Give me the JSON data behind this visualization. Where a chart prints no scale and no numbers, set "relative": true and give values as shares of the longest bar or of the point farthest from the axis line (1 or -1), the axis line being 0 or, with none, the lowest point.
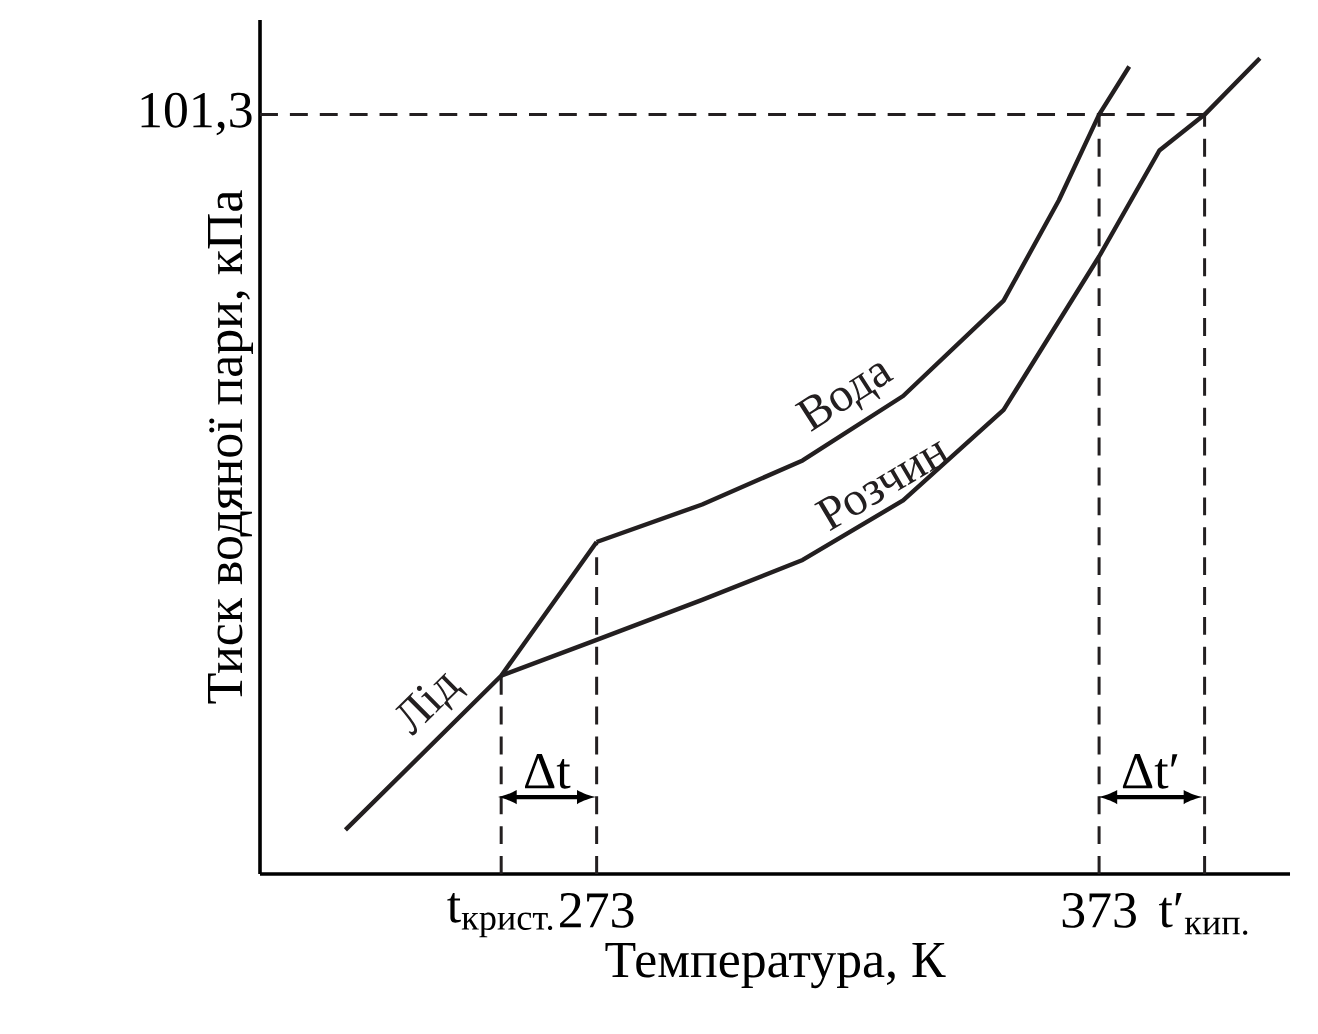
{
  "chart_data": {
    "type": "line",
    "relative": true,
    "xlabel": "Температура, К",
    "ylabel": "Тиск водяної пари, кПа",
    "xlim": [
      206,
      411
    ],
    "xticks": [
      {
        "value": 254,
        "label": "t$_{крист.}$"
      },
      273,
      373,
      {
        "value": 394,
        "label": "t′$_{кип.}$"
      }
    ],
    "series": [
      {
        "name": "Лід",
        "color": "#231f20",
        "x": [
          223,
          254,
          273
        ],
        "values": [
          0.054,
          0.243,
          0.407
        ]
      },
      {
        "name": "Вода",
        "color": "#231f20",
        "x": [
          273,
          294,
          314,
          334,
          354,
          365,
          373,
          379
        ],
        "values": [
          0.407,
          0.453,
          0.507,
          0.586,
          0.703,
          0.826,
          0.931,
          0.99
        ]
      },
      {
        "name": "Розчин",
        "color": "#231f20",
        "x": [
          254,
          273,
          294,
          314,
          334,
          354,
          373,
          385,
          394,
          405
        ],
        "values": [
          0.243,
          0.287,
          0.336,
          0.385,
          0.458,
          0.569,
          0.757,
          0.887,
          0.931,
          1.0
        ]
      },
      {
        "color": "#231f20",
        "line_style": "dashed",
        "x": [
          254,
          254
        ],
        "values": [
          0,
          0.243
        ]
      },
      {
        "color": "#231f20",
        "line_style": "dashed",
        "x": [
          273,
          273
        ],
        "values": [
          0,
          0.407
        ]
      },
      {
        "color": "#231f20",
        "line_style": "dashed",
        "x": [
          373,
          373
        ],
        "values": [
          0,
          0.931
        ]
      },
      {
        "color": "#231f20",
        "line_style": "dashed",
        "x": [
          394,
          394
        ],
        "values": [
          0,
          0.931
        ]
      },
      {
        "color": "#231f20",
        "line_style": "dashed",
        "x": [
          206,
          394
        ],
        "values": [
          0.931,
          0.931
        ]
      }
    ],
    "annotations": [
      "101,3",
      "Δt",
      "Δt′"
    ]
  }
}
